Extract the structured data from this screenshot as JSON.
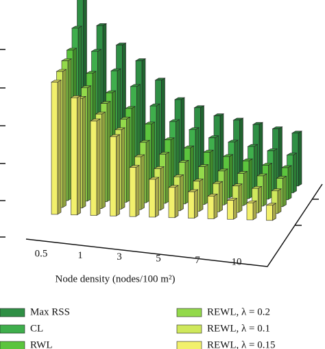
{
  "chart_data": {
    "type": "bar3d",
    "x_label": "Node density (nodes/100 m²)",
    "categories": [
      "0.5",
      null,
      "1",
      null,
      "3",
      null,
      "5",
      null,
      "7",
      null,
      "10",
      null
    ],
    "ylim": [
      0,
      6
    ],
    "series": [
      {
        "name": "Max RSS",
        "color": "#2f8f45",
        "values": [
          4.9,
          4.1,
          3.6,
          3.2,
          2.7,
          2.2,
          2.0,
          1.8,
          1.7,
          1.6,
          1.5,
          1.4
        ]
      },
      {
        "name": "CL",
        "color": "#3fae4c",
        "values": [
          4.2,
          3.6,
          3.1,
          2.7,
          2.2,
          1.8,
          1.6,
          1.4,
          1.3,
          1.2,
          1.1,
          1.0
        ]
      },
      {
        "name": "RWL",
        "color": "#5cc43e",
        "values": [
          3.8,
          3.2,
          2.7,
          2.3,
          1.9,
          1.5,
          1.3,
          1.2,
          1.1,
          1.0,
          0.9,
          0.85
        ]
      },
      {
        "name": "REWL, λ = 0.2",
        "color": "#93d94b",
        "values": [
          3.7,
          3.0,
          2.6,
          2.2,
          1.6,
          1.3,
          1.1,
          1.0,
          0.9,
          0.85,
          0.8,
          0.75
        ]
      },
      {
        "name": "REWL, λ = 0.1",
        "color": "#cfe85c",
        "values": [
          3.6,
          2.9,
          2.5,
          2.1,
          1.4,
          1.1,
          0.9,
          0.8,
          0.75,
          0.7,
          0.65,
          0.6
        ]
      },
      {
        "name": "REWL, λ = 0.15",
        "color": "#f2f06c",
        "values": [
          3.5,
          3.1,
          2.5,
          2.1,
          1.3,
          1.0,
          0.8,
          0.7,
          0.6,
          0.5,
          0.45,
          0.4
        ]
      }
    ]
  }
}
